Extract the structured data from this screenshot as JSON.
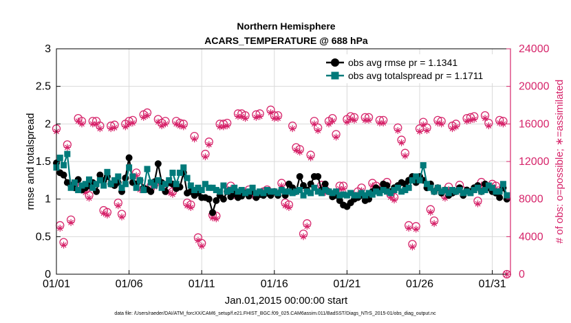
{
  "chart_data": {
    "type": "line",
    "title": "Northern Hemisphere",
    "subtitle": "ACARS_TEMPERATURE @ 688 hPa",
    "xlabel": "Jan.01,2015 00:00:00 start",
    "ylabel_left": "rmse and totalspread",
    "ylabel_right": "# of obs: o=possible; ∗=assimilated",
    "xlim": [
      0,
      31.25
    ],
    "ylim_left": [
      0,
      3
    ],
    "ylim_right": [
      0,
      24000
    ],
    "x_ticks": [
      0,
      5,
      10,
      15,
      20,
      25,
      30
    ],
    "x_tick_labels": [
      "01/01",
      "01/06",
      "01/11",
      "01/16",
      "01/21",
      "01/26",
      "01/31"
    ],
    "y_ticks_left": [
      "0",
      "0.5",
      "1",
      "1.5",
      "2",
      "2.5",
      "3"
    ],
    "y_ticks_right": [
      "0",
      "4000",
      "8000",
      "12000",
      "16000",
      "20000",
      "24000"
    ],
    "grid": true,
    "legend_position": "top-right",
    "footer": "data file: /Users/raeder/DAI/ATM_forcXX/CAM6_setup/f.e21.FHIST_BGC.f09_025.CAM6assim.011/BadSST/Diags_NTrS_2015-01/obs_diag_output.nc",
    "colors": {
      "rmse": "#000000",
      "spread": "#007a7a",
      "obs": "#d6246a",
      "right_axis": "#d6246a"
    },
    "series": [
      {
        "name": "obs avg rmse pr = 1.1341",
        "marker": "circle",
        "x": [
          0.0,
          0.25,
          0.5,
          0.75,
          1.0,
          1.25,
          1.5,
          1.75,
          2.0,
          2.25,
          2.5,
          2.75,
          3.0,
          3.25,
          3.5,
          3.75,
          4.0,
          4.25,
          4.5,
          4.75,
          5.0,
          5.25,
          5.5,
          5.75,
          6.0,
          6.25,
          6.5,
          6.75,
          7.0,
          7.25,
          7.5,
          7.75,
          8.0,
          8.25,
          8.5,
          8.75,
          9.0,
          9.25,
          9.5,
          9.75,
          10.0,
          10.25,
          10.5,
          10.75,
          11.0,
          11.25,
          11.5,
          11.75,
          12.0,
          12.25,
          12.5,
          12.75,
          13.0,
          13.25,
          13.5,
          13.75,
          14.0,
          14.25,
          14.5,
          14.75,
          15.0,
          15.25,
          15.5,
          15.75,
          16.0,
          16.25,
          16.5,
          16.75,
          17.0,
          17.25,
          17.5,
          17.75,
          18.0,
          18.25,
          18.5,
          18.75,
          19.0,
          19.25,
          19.5,
          19.75,
          20.0,
          20.25,
          20.5,
          20.75,
          21.0,
          21.25,
          21.5,
          21.75,
          22.0,
          22.25,
          22.5,
          22.75,
          23.0,
          23.25,
          23.5,
          23.75,
          24.0,
          24.25,
          24.5,
          24.75,
          25.0,
          25.25,
          25.5,
          25.75,
          26.0,
          26.25,
          26.5,
          26.75,
          27.0,
          27.25,
          27.5,
          27.75,
          28.0,
          28.25,
          28.5,
          28.75,
          29.0,
          29.25,
          29.5,
          29.75,
          30.0,
          30.25,
          30.5,
          30.75,
          31.0
        ],
        "values": [
          1.48,
          1.35,
          1.32,
          1.22,
          1.18,
          1.15,
          1.26,
          1.12,
          1.15,
          1.18,
          1.22,
          1.1,
          1.32,
          1.25,
          1.3,
          1.2,
          1.18,
          1.22,
          1.1,
          1.28,
          1.55,
          1.22,
          1.2,
          1.25,
          1.15,
          1.13,
          1.1,
          1.23,
          1.47,
          1.22,
          1.1,
          1.22,
          1.2,
          1.14,
          1.16,
          1.35,
          1.08,
          1.1,
          1.05,
          1.08,
          1.02,
          1.02,
          1.0,
          0.82,
          0.98,
          1.05,
          1.0,
          1.1,
          1.03,
          1.07,
          1.02,
          1.04,
          1.08,
          1.04,
          1.1,
          1.02,
          1.06,
          1.05,
          1.08,
          1.05,
          1.1,
          1.05,
          1.12,
          1.05,
          1.2,
          1.15,
          1.1,
          1.3,
          1.18,
          1.12,
          1.2,
          1.3,
          1.3,
          1.12,
          1.2,
          1.1,
          1.03,
          1.05,
          0.98,
          0.92,
          0.9,
          0.95,
          1.0,
          1.02,
          1.05,
          0.98,
          1.0,
          1.1,
          1.15,
          1.12,
          1.2,
          1.18,
          1.1,
          1.15,
          1.18,
          1.22,
          1.2,
          1.25,
          1.3,
          1.22,
          1.3,
          1.25,
          1.15,
          1.2,
          1.1,
          1.15,
          1.08,
          1.12,
          1.05,
          1.08,
          1.1,
          1.15,
          1.05,
          1.12,
          1.1,
          1.15,
          1.18,
          1.1,
          1.2,
          1.15,
          1.1,
          1.08,
          1.02,
          1.15,
          1.0
        ]
      },
      {
        "name": "obs avg totalspread pr = 1.1711",
        "marker": "square",
        "x": [
          0.0,
          0.25,
          0.5,
          0.75,
          1.0,
          1.25,
          1.5,
          1.75,
          2.0,
          2.25,
          2.5,
          2.75,
          3.0,
          3.25,
          3.5,
          3.75,
          4.0,
          4.25,
          4.5,
          4.75,
          5.0,
          5.25,
          5.5,
          5.75,
          6.0,
          6.25,
          6.5,
          6.75,
          7.0,
          7.25,
          7.5,
          7.75,
          8.0,
          8.25,
          8.5,
          8.75,
          9.0,
          9.25,
          9.5,
          9.75,
          10.0,
          10.25,
          10.5,
          10.75,
          11.0,
          11.25,
          11.5,
          11.75,
          12.0,
          12.25,
          12.5,
          12.75,
          13.0,
          13.25,
          13.5,
          13.75,
          14.0,
          14.25,
          14.5,
          14.75,
          15.0,
          15.25,
          15.5,
          15.75,
          16.0,
          16.25,
          16.5,
          16.75,
          17.0,
          17.25,
          17.5,
          17.75,
          18.0,
          18.25,
          18.5,
          18.75,
          19.0,
          19.25,
          19.5,
          19.75,
          20.0,
          20.25,
          20.5,
          20.75,
          21.0,
          21.25,
          21.5,
          21.75,
          22.0,
          22.25,
          22.5,
          22.75,
          23.0,
          23.25,
          23.5,
          23.75,
          24.0,
          24.25,
          24.5,
          24.75,
          25.0,
          25.25,
          25.5,
          25.75,
          26.0,
          26.25,
          26.5,
          26.75,
          27.0,
          27.25,
          27.5,
          27.75,
          28.0,
          28.25,
          28.5,
          28.75,
          29.0,
          29.25,
          29.5,
          29.75,
          30.0,
          30.25,
          30.5,
          30.75,
          31.0
        ],
        "values": [
          1.42,
          1.55,
          1.45,
          1.6,
          1.15,
          1.22,
          1.12,
          1.18,
          1.2,
          1.26,
          1.15,
          1.2,
          1.25,
          1.18,
          1.36,
          1.2,
          1.25,
          1.3,
          1.15,
          1.2,
          1.42,
          1.3,
          1.15,
          1.25,
          1.12,
          1.4,
          1.22,
          1.18,
          1.25,
          1.15,
          1.2,
          1.25,
          1.35,
          1.2,
          1.35,
          1.42,
          1.28,
          1.18,
          1.12,
          1.15,
          1.12,
          1.2,
          1.15,
          1.15,
          1.12,
          1.1,
          1.18,
          1.1,
          1.12,
          1.15,
          1.1,
          1.12,
          1.08,
          1.1,
          1.15,
          1.08,
          1.1,
          1.08,
          1.12,
          1.1,
          1.1,
          1.08,
          1.12,
          1.1,
          1.1,
          1.08,
          1.1,
          1.12,
          1.05,
          1.1,
          1.08,
          1.15,
          1.1,
          1.08,
          1.12,
          1.1,
          1.08,
          1.1,
          1.05,
          1.06,
          1.05,
          1.08,
          1.05,
          1.05,
          1.08,
          1.05,
          1.08,
          1.06,
          1.1,
          1.08,
          1.12,
          1.1,
          1.08,
          1.12,
          1.15,
          1.1,
          1.12,
          1.15,
          1.25,
          1.3,
          1.25,
          1.45,
          1.2,
          1.15,
          1.1,
          1.15,
          1.1,
          1.12,
          1.08,
          1.12,
          1.1,
          1.12,
          1.08,
          1.1,
          1.08,
          1.12,
          1.15,
          1.1,
          1.12,
          1.18,
          1.15,
          1.1,
          1.1,
          1.2,
          1.05
        ]
      },
      {
        "name": "# of obs possible",
        "marker": "circle-open",
        "axis": "right",
        "x": [
          0.0,
          0.25,
          0.5,
          0.75,
          1.0,
          1.25,
          1.5,
          1.75,
          2.0,
          2.25,
          2.5,
          2.75,
          3.0,
          3.25,
          3.5,
          3.75,
          4.0,
          4.25,
          4.5,
          4.75,
          5.0,
          5.25,
          5.5,
          5.75,
          6.0,
          6.25,
          6.5,
          6.75,
          7.0,
          7.25,
          7.5,
          7.75,
          8.0,
          8.25,
          8.5,
          8.75,
          9.0,
          9.25,
          9.5,
          9.75,
          10.0,
          10.25,
          10.5,
          10.75,
          11.0,
          11.25,
          11.5,
          11.75,
          12.0,
          12.25,
          12.5,
          12.75,
          13.0,
          13.25,
          13.5,
          13.75,
          14.0,
          14.25,
          14.5,
          14.75,
          15.0,
          15.25,
          15.5,
          15.75,
          16.0,
          16.25,
          16.5,
          16.75,
          17.0,
          17.25,
          17.5,
          17.75,
          18.0,
          18.25,
          18.5,
          18.75,
          19.0,
          19.25,
          19.5,
          19.75,
          20.0,
          20.25,
          20.5,
          20.75,
          21.0,
          21.25,
          21.5,
          21.75,
          22.0,
          22.25,
          22.5,
          22.75,
          23.0,
          23.25,
          23.5,
          23.75,
          24.0,
          24.25,
          24.5,
          24.75,
          25.0,
          25.25,
          25.5,
          25.75,
          26.0,
          26.25,
          26.5,
          26.75,
          27.0,
          27.25,
          27.5,
          27.75,
          28.0,
          28.25,
          28.5,
          28.75,
          29.0,
          29.25,
          29.5,
          29.75,
          30.0,
          30.25,
          30.5,
          30.75,
          31.0
        ],
        "values": [
          15500,
          5200,
          3400,
          13800,
          5800,
          9600,
          16600,
          16300,
          9000,
          8400,
          16300,
          16300,
          15800,
          6800,
          6600,
          15800,
          15900,
          7600,
          6400,
          16000,
          16300,
          16400,
          10800,
          9300,
          17000,
          17200,
          9400,
          9600,
          16500,
          16100,
          16300,
          9000,
          8800,
          16300,
          16100,
          16000,
          7600,
          7400,
          14700,
          3900,
          3300,
          12800,
          14100,
          6300,
          6200,
          16000,
          16000,
          16100,
          9400,
          8700,
          17100,
          17100,
          16900,
          9000,
          8700,
          17000,
          17100,
          8800,
          9000,
          17500,
          16900,
          16900,
          9700,
          7600,
          7400,
          15800,
          13500,
          13300,
          4300,
          5400,
          12700,
          16300,
          15600,
          9500,
          9000,
          16300,
          16600,
          14900,
          9400,
          9400,
          16500,
          16800,
          16700,
          8800,
          9200,
          16700,
          16700,
          9700,
          9400,
          16400,
          16400,
          9800,
          8500,
          8200,
          15600,
          14300,
          12900,
          5200,
          3200,
          5100,
          15500,
          16200,
          15600,
          6900,
          5700,
          16400,
          16300,
          8400,
          9300,
          15800,
          16000,
          9500,
          8900,
          16600,
          16700,
          16800,
          7800,
          9800,
          16900,
          16100,
          9600,
          9400,
          16400,
          16300,
          0
        ]
      },
      {
        "name": "# of obs assimilated",
        "marker": "asterisk",
        "axis": "right",
        "x": [
          0.0,
          0.25,
          0.5,
          0.75,
          1.0,
          1.25,
          1.5,
          1.75,
          2.0,
          2.25,
          2.5,
          2.75,
          3.0,
          3.25,
          3.5,
          3.75,
          4.0,
          4.25,
          4.5,
          4.75,
          5.0,
          5.25,
          5.5,
          5.75,
          6.0,
          6.25,
          6.5,
          6.75,
          7.0,
          7.25,
          7.5,
          7.75,
          8.0,
          8.25,
          8.5,
          8.75,
          9.0,
          9.25,
          9.5,
          9.75,
          10.0,
          10.25,
          10.5,
          10.75,
          11.0,
          11.25,
          11.5,
          11.75,
          12.0,
          12.25,
          12.5,
          12.75,
          13.0,
          13.25,
          13.5,
          13.75,
          14.0,
          14.25,
          14.5,
          14.75,
          15.0,
          15.25,
          15.5,
          15.75,
          16.0,
          16.25,
          16.5,
          16.75,
          17.0,
          17.25,
          17.5,
          17.75,
          18.0,
          18.25,
          18.5,
          18.75,
          19.0,
          19.25,
          19.5,
          19.75,
          20.0,
          20.25,
          20.5,
          20.75,
          21.0,
          21.25,
          21.5,
          21.75,
          22.0,
          22.25,
          22.5,
          22.75,
          23.0,
          23.25,
          23.5,
          23.75,
          24.0,
          24.25,
          24.5,
          24.75,
          25.0,
          25.25,
          25.5,
          25.75,
          26.0,
          26.25,
          26.5,
          26.75,
          27.0,
          27.25,
          27.5,
          27.75,
          28.0,
          28.25,
          28.5,
          28.75,
          29.0,
          29.25,
          29.5,
          29.75,
          30.0,
          30.25,
          30.5,
          30.75,
          31.0
        ],
        "values": [
          15200,
          4900,
          3100,
          13500,
          5500,
          9300,
          16300,
          16000,
          8700,
          8100,
          16000,
          16000,
          15500,
          6500,
          6300,
          15500,
          15600,
          7300,
          6100,
          15700,
          16000,
          16100,
          10500,
          9000,
          16700,
          16900,
          9100,
          9300,
          16200,
          15800,
          16000,
          8700,
          8500,
          16000,
          15800,
          15700,
          7300,
          7100,
          14400,
          3600,
          3000,
          12500,
          13800,
          6000,
          5900,
          15700,
          15700,
          15800,
          9100,
          8400,
          16800,
          16800,
          16600,
          8700,
          8400,
          16700,
          16800,
          8500,
          8700,
          17200,
          16600,
          16600,
          9400,
          7300,
          7100,
          15500,
          13200,
          13000,
          4000,
          5100,
          12400,
          16000,
          15300,
          9200,
          8700,
          16000,
          16300,
          14600,
          9100,
          9100,
          16200,
          16500,
          16400,
          8500,
          8900,
          16400,
          16400,
          9400,
          9100,
          16100,
          16100,
          9500,
          8200,
          7900,
          15300,
          14000,
          12600,
          4900,
          2900,
          4800,
          15200,
          15900,
          15300,
          6600,
          5400,
          16100,
          16000,
          8100,
          9000,
          15500,
          15700,
          9200,
          8600,
          16300,
          16400,
          16500,
          7500,
          9500,
          16600,
          15800,
          9300,
          9100,
          16100,
          16000,
          0
        ]
      }
    ]
  }
}
